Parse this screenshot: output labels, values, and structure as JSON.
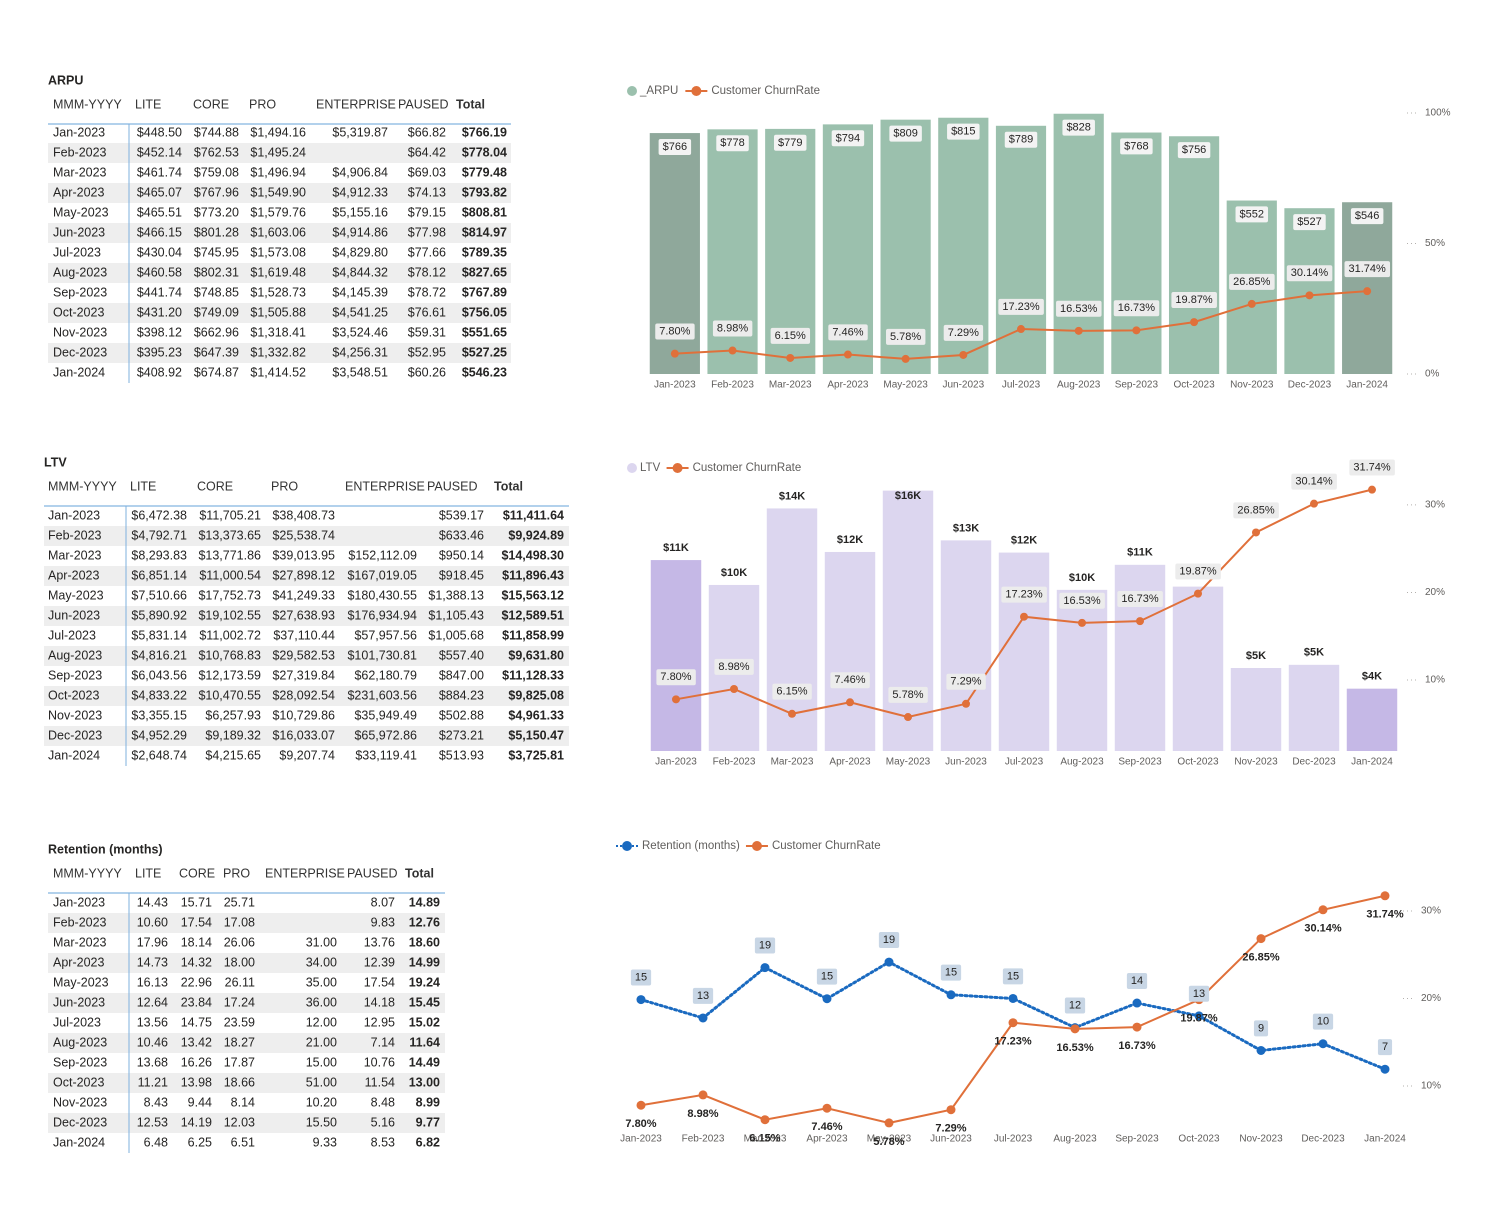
{
  "tables": [
    {
      "title": "ARPU",
      "columns": [
        "MMM-YYYY",
        "LITE",
        "CORE",
        "PRO",
        "ENTERPRISE",
        "PAUSED",
        "Total"
      ],
      "rows": [
        [
          "Jan-2023",
          "$448.50",
          "$744.88",
          "$1,494.16",
          "$5,319.87",
          "$66.82",
          "$766.19"
        ],
        [
          "Feb-2023",
          "$452.14",
          "$762.53",
          "$1,495.24",
          null,
          "$64.42",
          "$778.04"
        ],
        [
          "Mar-2023",
          "$461.74",
          "$759.08",
          "$1,496.94",
          "$4,906.84",
          "$69.03",
          "$779.48"
        ],
        [
          "Apr-2023",
          "$465.07",
          "$767.96",
          "$1,549.90",
          "$4,912.33",
          "$74.13",
          "$793.82"
        ],
        [
          "May-2023",
          "$465.51",
          "$773.20",
          "$1,579.76",
          "$5,155.16",
          "$79.15",
          "$808.81"
        ],
        [
          "Jun-2023",
          "$466.15",
          "$801.28",
          "$1,603.06",
          "$4,914.86",
          "$77.98",
          "$814.97"
        ],
        [
          "Jul-2023",
          "$430.04",
          "$745.95",
          "$1,573.08",
          "$4,829.80",
          "$77.66",
          "$789.35"
        ],
        [
          "Aug-2023",
          "$460.58",
          "$802.31",
          "$1,619.48",
          "$4,844.32",
          "$78.12",
          "$827.65"
        ],
        [
          "Sep-2023",
          "$441.74",
          "$748.85",
          "$1,528.73",
          "$4,145.39",
          "$78.72",
          "$767.89"
        ],
        [
          "Oct-2023",
          "$431.20",
          "$749.09",
          "$1,505.88",
          "$4,541.25",
          "$76.61",
          "$756.05"
        ],
        [
          "Nov-2023",
          "$398.12",
          "$662.96",
          "$1,318.41",
          "$3,524.46",
          "$59.31",
          "$551.65"
        ],
        [
          "Dec-2023",
          "$395.23",
          "$647.39",
          "$1,332.82",
          "$4,256.31",
          "$52.95",
          "$527.25"
        ],
        [
          "Jan-2024",
          "$408.92",
          "$674.87",
          "$1,414.52",
          "$3,548.51",
          "$60.26",
          "$546.23"
        ]
      ]
    },
    {
      "title": "LTV",
      "columns": [
        "MMM-YYYY",
        "LITE",
        "CORE",
        "PRO",
        "ENTERPRISE",
        "PAUSED",
        "Total"
      ],
      "rows": [
        [
          "Jan-2023",
          "$6,472.38",
          "$11,705.21",
          "$38,408.73",
          null,
          "$539.17",
          "$11,411.64"
        ],
        [
          "Feb-2023",
          "$4,792.71",
          "$13,373.65",
          "$25,538.74",
          null,
          "$633.46",
          "$9,924.89"
        ],
        [
          "Mar-2023",
          "$8,293.83",
          "$13,771.86",
          "$39,013.95",
          "$152,112.09",
          "$950.14",
          "$14,498.30"
        ],
        [
          "Apr-2023",
          "$6,851.14",
          "$11,000.54",
          "$27,898.12",
          "$167,019.05",
          "$918.45",
          "$11,896.43"
        ],
        [
          "May-2023",
          "$7,510.66",
          "$17,752.73",
          "$41,249.33",
          "$180,430.55",
          "$1,388.13",
          "$15,563.12"
        ],
        [
          "Jun-2023",
          "$5,890.92",
          "$19,102.55",
          "$27,638.93",
          "$176,934.94",
          "$1,105.43",
          "$12,589.51"
        ],
        [
          "Jul-2023",
          "$5,831.14",
          "$11,002.72",
          "$37,110.44",
          "$57,957.56",
          "$1,005.68",
          "$11,858.99"
        ],
        [
          "Aug-2023",
          "$4,816.21",
          "$10,768.83",
          "$29,582.53",
          "$101,730.81",
          "$557.40",
          "$9,631.80"
        ],
        [
          "Sep-2023",
          "$6,043.56",
          "$12,173.59",
          "$27,319.84",
          "$62,180.79",
          "$847.00",
          "$11,128.33"
        ],
        [
          "Oct-2023",
          "$4,833.22",
          "$10,470.55",
          "$28,092.54",
          "$231,603.56",
          "$884.23",
          "$9,825.08"
        ],
        [
          "Nov-2023",
          "$3,355.15",
          "$6,257.93",
          "$10,729.86",
          "$35,949.49",
          "$502.88",
          "$4,961.33"
        ],
        [
          "Dec-2023",
          "$4,952.29",
          "$9,189.32",
          "$16,033.07",
          "$65,972.86",
          "$273.21",
          "$5,150.47"
        ],
        [
          "Jan-2024",
          "$2,648.74",
          "$4,215.65",
          "$9,207.74",
          "$33,119.41",
          "$513.93",
          "$3,725.81"
        ]
      ]
    },
    {
      "title": "Retention (months)",
      "columns": [
        "MMM-YYYY",
        "LITE",
        "CORE",
        "PRO",
        "ENTERPRISE",
        "PAUSED",
        "Total"
      ],
      "rows": [
        [
          "Jan-2023",
          "14.43",
          "15.71",
          "25.71",
          null,
          "8.07",
          "14.89"
        ],
        [
          "Feb-2023",
          "10.60",
          "17.54",
          "17.08",
          null,
          "9.83",
          "12.76"
        ],
        [
          "Mar-2023",
          "17.96",
          "18.14",
          "26.06",
          "31.00",
          "13.76",
          "18.60"
        ],
        [
          "Apr-2023",
          "14.73",
          "14.32",
          "18.00",
          "34.00",
          "12.39",
          "14.99"
        ],
        [
          "May-2023",
          "16.13",
          "22.96",
          "26.11",
          "35.00",
          "17.54",
          "19.24"
        ],
        [
          "Jun-2023",
          "12.64",
          "23.84",
          "17.24",
          "36.00",
          "14.18",
          "15.45"
        ],
        [
          "Jul-2023",
          "13.56",
          "14.75",
          "23.59",
          "12.00",
          "12.95",
          "15.02"
        ],
        [
          "Aug-2023",
          "10.46",
          "13.42",
          "18.27",
          "21.00",
          "7.14",
          "11.64"
        ],
        [
          "Sep-2023",
          "13.68",
          "16.26",
          "17.87",
          "15.00",
          "10.76",
          "14.49"
        ],
        [
          "Oct-2023",
          "11.21",
          "13.98",
          "18.66",
          "51.00",
          "11.54",
          "13.00"
        ],
        [
          "Nov-2023",
          "8.43",
          "9.44",
          "8.14",
          "10.20",
          "8.48",
          "8.99"
        ],
        [
          "Dec-2023",
          "12.53",
          "14.19",
          "12.03",
          "15.50",
          "5.16",
          "9.77"
        ],
        [
          "Jan-2024",
          "6.48",
          "6.25",
          "6.51",
          "9.33",
          "8.53",
          "6.82"
        ]
      ]
    }
  ],
  "chart_data": [
    {
      "type": "combo",
      "categories": [
        "Jan-2023",
        "Feb-2023",
        "Mar-2023",
        "Apr-2023",
        "May-2023",
        "Jun-2023",
        "Jul-2023",
        "Aug-2023",
        "Sep-2023",
        "Oct-2023",
        "Nov-2023",
        "Dec-2023",
        "Jan-2024"
      ],
      "ylim": [
        0,
        830
      ],
      "y2lim": [
        0,
        100
      ],
      "y2ticks": [
        {
          "value": 0,
          "label": "0%"
        },
        {
          "value": 50,
          "label": "50%"
        },
        {
          "value": 100,
          "label": "100%"
        }
      ],
      "series": [
        {
          "name": "_ARPU",
          "type": "bar",
          "color": "#9bc0ad",
          "colors": [
            "#8fa89b",
            "#9bc0ad",
            "#9bc0ad",
            "#9bc0ad",
            "#9bc0ad",
            "#9bc0ad",
            "#9bc0ad",
            "#9bc0ad",
            "#9bc0ad",
            "#9bc0ad",
            "#9bc0ad",
            "#9bc0ad",
            "#8fa89b"
          ],
          "values": [
            766.19,
            778.04,
            779.48,
            793.82,
            808.81,
            814.97,
            789.35,
            827.65,
            767.89,
            756.05,
            551.65,
            527.25,
            546.23
          ],
          "value_labels": [
            "$766",
            "$778",
            "$779",
            "$794",
            "$809",
            "$815",
            "$789",
            "$828",
            "$768",
            "$756",
            "$552",
            "$527",
            "$546"
          ]
        },
        {
          "name": "Customer ChurnRate",
          "type": "line",
          "axis": "y2",
          "color": "#e0703a",
          "values": [
            7.8,
            8.98,
            6.15,
            7.46,
            5.78,
            7.29,
            17.23,
            16.53,
            16.73,
            19.87,
            26.85,
            30.14,
            31.74
          ],
          "value_labels": [
            "7.80%",
            "8.98%",
            "6.15%",
            "7.46%",
            "5.78%",
            "7.29%",
            "17.23%",
            "16.53%",
            "16.73%",
            "19.87%",
            "26.85%",
            "30.14%",
            "31.74%"
          ]
        }
      ]
    },
    {
      "type": "combo",
      "categories": [
        "Jan-2023",
        "Feb-2023",
        "Mar-2023",
        "Apr-2023",
        "May-2023",
        "Jun-2023",
        "Jul-2023",
        "Aug-2023",
        "Sep-2023",
        "Oct-2023",
        "Nov-2023",
        "Dec-2023",
        "Jan-2024"
      ],
      "ylim": [
        0,
        15600
      ],
      "y2lim": [
        1.9,
        31.7
      ],
      "y2ticks": [
        {
          "value": 10,
          "label": "10%"
        },
        {
          "value": 20,
          "label": "20%"
        },
        {
          "value": 30,
          "label": "30%"
        }
      ],
      "series": [
        {
          "name": "LTV",
          "type": "bar",
          "color": "#dcd6ef",
          "colors": [
            "#c5b8e6",
            "#dcd6ef",
            "#dcd6ef",
            "#dcd6ef",
            "#dcd6ef",
            "#dcd6ef",
            "#dcd6ef",
            "#dcd6ef",
            "#dcd6ef",
            "#dcd6ef",
            "#dcd6ef",
            "#dcd6ef",
            "#c5b8e6"
          ],
          "values": [
            11411.64,
            9924.89,
            14498.3,
            11896.43,
            15563.12,
            12589.51,
            11858.99,
            9631.8,
            11128.33,
            9825.08,
            4961.33,
            5150.47,
            3725.81
          ],
          "value_labels": [
            "$11K",
            "$10K",
            "$14K",
            "$12K",
            "$16K",
            "$13K",
            "$12K",
            "$10K",
            "$11K",
            "$10K",
            "$5K",
            "$5K",
            "$4K"
          ]
        },
        {
          "name": "Customer ChurnRate",
          "type": "line",
          "axis": "y2",
          "color": "#e0703a",
          "values": [
            7.8,
            8.98,
            6.15,
            7.46,
            5.78,
            7.29,
            17.23,
            16.53,
            16.73,
            19.87,
            26.85,
            30.14,
            31.74
          ],
          "value_labels": [
            "7.80%",
            "8.98%",
            "6.15%",
            "7.46%",
            "5.78%",
            "7.29%",
            "17.23%",
            "16.53%",
            "16.73%",
            "19.87%",
            "26.85%",
            "30.14%",
            "31.74%"
          ]
        }
      ]
    },
    {
      "type": "line",
      "categories": [
        "Jan-2023",
        "Feb-2023",
        "Mar-2023",
        "Apr-2023",
        "May-2023",
        "Jun-2023",
        "Jul-2023",
        "Aug-2023",
        "Sep-2023",
        "Oct-2023",
        "Nov-2023",
        "Dec-2023",
        "Jan-2024"
      ],
      "ylim": [
        0,
        27.6
      ],
      "y2lim": [
        5.2,
        32.4
      ],
      "y2ticks": [
        {
          "value": 10,
          "label": "10%"
        },
        {
          "value": 20,
          "label": "20%"
        },
        {
          "value": 30,
          "label": "30%"
        }
      ],
      "series": [
        {
          "name": "Retention (months)",
          "type": "line",
          "style": "dotted",
          "color": "#1a6ac0",
          "values": [
            14.89,
            12.76,
            18.6,
            14.99,
            19.24,
            15.45,
            15.02,
            11.64,
            14.49,
            13.0,
            8.99,
            9.77,
            6.82
          ],
          "value_labels": [
            "15",
            "13",
            "19",
            "15",
            "19",
            "15",
            "15",
            "12",
            "14",
            "13",
            "9",
            "10",
            "7"
          ]
        },
        {
          "name": "Customer ChurnRate",
          "type": "line",
          "axis": "y2",
          "color": "#e0703a",
          "label_color": "#d13f4b",
          "values": [
            7.8,
            8.98,
            6.15,
            7.46,
            5.78,
            7.29,
            17.23,
            16.53,
            16.73,
            19.87,
            26.85,
            30.14,
            31.74
          ],
          "value_labels": [
            "7.80%",
            "8.98%",
            "6.15%",
            "7.46%",
            "5.78%",
            "7.29%",
            "17.23%",
            "16.53%",
            "16.73%",
            "19.87%",
            "26.85%",
            "30.14%",
            "31.74%"
          ]
        }
      ]
    }
  ]
}
